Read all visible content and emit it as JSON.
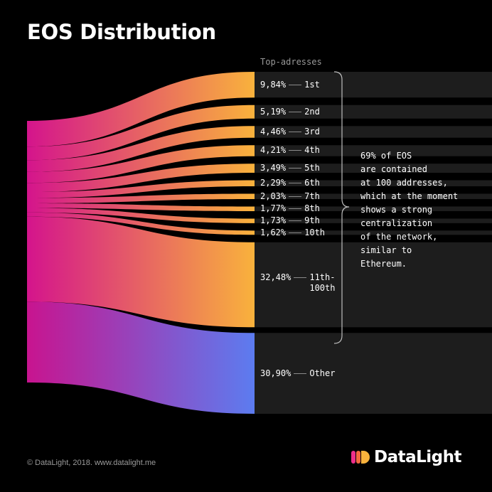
{
  "title": "EOS Distribution",
  "header_label": "Top-adresses",
  "note": "69% of EOS\nare contained\nat 100 addresses,\nwhich at the moment\nshows a strong\ncentralization\nof the network,\nsimilar to\nEthereum.",
  "footer": "© DataLight, 2018. www.datalight.me",
  "logo_text": "DataLight",
  "colors": {
    "warm_start": "#d4148c",
    "warm_end": "#f9b23c",
    "cool_start": "#c8148f",
    "cool_end": "#5c7cf0",
    "bar_bg": "#1d1d1d"
  },
  "chart_data": {
    "type": "sankey",
    "unit": "%",
    "flows": [
      {
        "label": "9,84%",
        "rank": "1st",
        "value": 9.84,
        "group": "Top-adresses"
      },
      {
        "label": "5,19%",
        "rank": "2nd",
        "value": 5.19,
        "group": "Top-adresses"
      },
      {
        "label": "4,46%",
        "rank": "3rd",
        "value": 4.46,
        "group": "Top-adresses"
      },
      {
        "label": "4,21%",
        "rank": "4th",
        "value": 4.21,
        "group": "Top-adresses"
      },
      {
        "label": "3,49%",
        "rank": "5th",
        "value": 3.49,
        "group": "Top-adresses"
      },
      {
        "label": "2,29%",
        "rank": "6th",
        "value": 2.29,
        "group": "Top-adresses"
      },
      {
        "label": "2,03%",
        "rank": "7th",
        "value": 2.03,
        "group": "Top-adresses"
      },
      {
        "label": "1,77%",
        "rank": "8th",
        "value": 1.77,
        "group": "Top-adresses"
      },
      {
        "label": "1,73%",
        "rank": "9th",
        "value": 1.73,
        "group": "Top-adresses"
      },
      {
        "label": "1,62%",
        "rank": "10th",
        "value": 1.62,
        "group": "Top-adresses"
      },
      {
        "label": "32,48%",
        "rank": "11th-\n100th",
        "value": 32.48,
        "group": "Top-adresses"
      },
      {
        "label": "30,90%",
        "rank": "Other",
        "value": 30.9,
        "group": ""
      }
    ]
  }
}
